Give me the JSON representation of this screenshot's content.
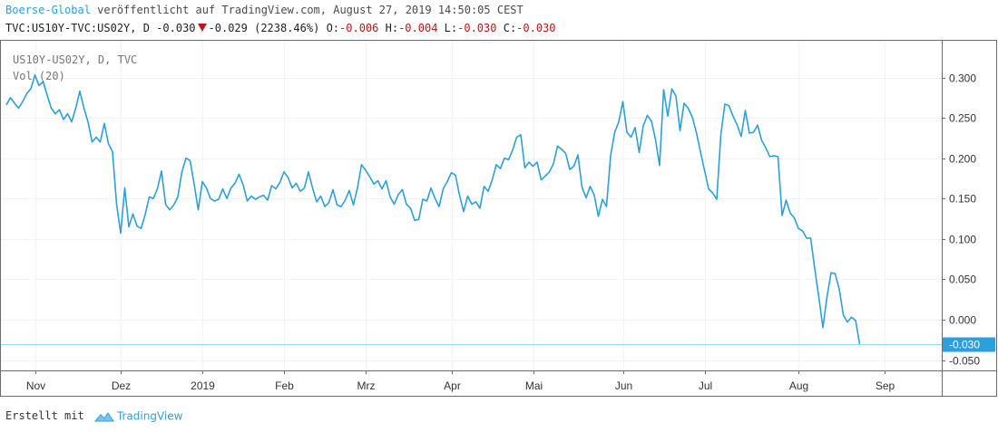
{
  "header": {
    "brand": "Boerse-Global",
    "published": " veröffentlicht auf TradingView.com, August 27, 2019 14:50:05 CEST",
    "symbol": "TVC:US10Y-TVC:US02Y, D -0.030",
    "change": "-0.029 (2238.46%)",
    "o_label": "O:",
    "o_value": "-0.006",
    "h_label": "H:",
    "h_value": "-0.004",
    "l_label": "L:",
    "l_value": "-0.030",
    "c_label": "C:",
    "c_value": "-0.030"
  },
  "legend": {
    "series": "US10Y-US02Y, D, TVC",
    "volume": "Vol (20)"
  },
  "footer": {
    "created_with": "Erstellt mit",
    "brand": "TradingView"
  },
  "colors": {
    "line": "#2d9fda",
    "last_price": "#2d9fda",
    "negative": "#b81818",
    "grid": "#f0f3fa"
  },
  "icons": {
    "down": "triangle-down-icon",
    "logo": "tradingview-cloud-icon"
  },
  "chart_data": {
    "type": "line",
    "ylim": [
      -0.065,
      0.34
    ],
    "y_ticks": [
      "0.300",
      "0.250",
      "0.200",
      "0.150",
      "0.100",
      "0.050",
      "0.000",
      "-0.050"
    ],
    "y_tick_values": [
      0.3,
      0.25,
      0.2,
      0.15,
      0.1,
      0.05,
      0.0,
      -0.05
    ],
    "x_ticks": [
      {
        "label": "Nov",
        "index": 7
      },
      {
        "label": "Dez",
        "index": 28
      },
      {
        "label": "2019",
        "index": 48
      },
      {
        "label": "Feb",
        "index": 68
      },
      {
        "label": "Mrz",
        "index": 88
      },
      {
        "label": "Apr",
        "index": 109
      },
      {
        "label": "Mai",
        "index": 129
      },
      {
        "label": "Jun",
        "index": 151
      },
      {
        "label": "Jul",
        "index": 171
      },
      {
        "label": "Aug",
        "index": 194
      },
      {
        "label": "Sep",
        "index": 215
      }
    ],
    "last_value_label": "-0.030",
    "last_value": -0.03,
    "values": [
      0.266,
      0.275,
      0.268,
      0.262,
      0.27,
      0.28,
      0.286,
      0.303,
      0.29,
      0.295,
      0.278,
      0.262,
      0.255,
      0.26,
      0.248,
      0.255,
      0.245,
      0.262,
      0.283,
      0.262,
      0.245,
      0.22,
      0.226,
      0.22,
      0.243,
      0.218,
      0.208,
      0.143,
      0.107,
      0.163,
      0.115,
      0.131,
      0.116,
      0.113,
      0.13,
      0.152,
      0.15,
      0.162,
      0.184,
      0.143,
      0.136,
      0.142,
      0.152,
      0.183,
      0.2,
      0.197,
      0.168,
      0.136,
      0.171,
      0.163,
      0.15,
      0.147,
      0.149,
      0.162,
      0.15,
      0.163,
      0.169,
      0.18,
      0.167,
      0.147,
      0.153,
      0.149,
      0.152,
      0.154,
      0.148,
      0.166,
      0.162,
      0.17,
      0.183,
      0.176,
      0.163,
      0.169,
      0.159,
      0.163,
      0.183,
      0.163,
      0.146,
      0.153,
      0.14,
      0.145,
      0.161,
      0.142,
      0.14,
      0.148,
      0.16,
      0.142,
      0.163,
      0.192,
      0.185,
      0.177,
      0.168,
      0.172,
      0.162,
      0.172,
      0.152,
      0.143,
      0.155,
      0.161,
      0.143,
      0.138,
      0.123,
      0.124,
      0.149,
      0.147,
      0.163,
      0.15,
      0.14,
      0.162,
      0.171,
      0.182,
      0.179,
      0.154,
      0.134,
      0.153,
      0.143,
      0.146,
      0.138,
      0.165,
      0.159,
      0.173,
      0.192,
      0.187,
      0.2,
      0.198,
      0.21,
      0.226,
      0.229,
      0.188,
      0.195,
      0.19,
      0.195,
      0.173,
      0.178,
      0.183,
      0.193,
      0.215,
      0.211,
      0.206,
      0.186,
      0.19,
      0.204,
      0.164,
      0.151,
      0.165,
      0.154,
      0.128,
      0.149,
      0.14,
      0.203,
      0.232,
      0.245,
      0.27,
      0.232,
      0.226,
      0.238,
      0.207,
      0.24,
      0.253,
      0.246,
      0.223,
      0.191,
      0.285,
      0.252,
      0.286,
      0.277,
      0.234,
      0.268,
      0.262,
      0.251,
      0.232,
      0.208,
      0.185,
      0.162,
      0.157,
      0.149,
      0.229,
      0.267,
      0.265,
      0.252,
      0.241,
      0.227,
      0.259,
      0.231,
      0.232,
      0.241,
      0.222,
      0.213,
      0.202,
      0.203,
      0.202,
      0.129,
      0.148,
      0.132,
      0.126,
      0.113,
      0.11,
      0.101,
      0.101,
      0.063,
      0.028,
      -0.01,
      0.028,
      0.058,
      0.057,
      0.038,
      0.006,
      -0.003,
      0.003,
      -0.001,
      -0.03
    ]
  }
}
